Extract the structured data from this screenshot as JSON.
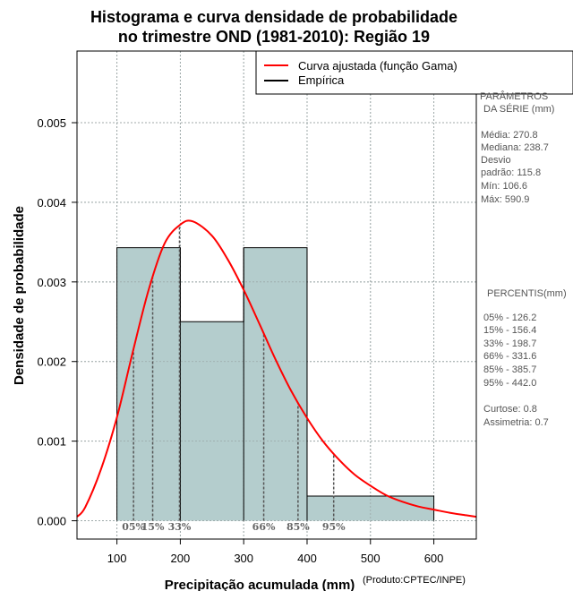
{
  "chart_data": {
    "type": "histogram",
    "title": [
      "Histograma e curva densidade de probabilidade",
      "no trimestre OND (1981-2010): Região 19"
    ],
    "xlabel": "Precipitação acumulada (mm)",
    "ylabel": "Densidade de probabilidade",
    "credit": "(Produto:CPTEC/INPE)",
    "xlim": [
      37,
      667
    ],
    "ylim": [
      -0.00023,
      0.0059
    ],
    "xticks": [
      100,
      200,
      300,
      400,
      500,
      600
    ],
    "yticks": [
      0.0,
      0.001,
      0.002,
      0.003,
      0.004,
      0.005
    ],
    "ytick_labels": [
      "0.000",
      "0.001",
      "0.002",
      "0.003",
      "0.004",
      "0.005"
    ],
    "grid": true,
    "bins": [
      {
        "x0": 100,
        "x1": 200,
        "density": 0.00343
      },
      {
        "x0": 200,
        "x1": 300,
        "density": 0.0025
      },
      {
        "x0": 300,
        "x1": 400,
        "density": 0.00343
      },
      {
        "x0": 400,
        "x1": 600,
        "density": 0.00031
      }
    ],
    "bar_color": "#b4cdcd",
    "curve_color": "#ff0000",
    "curve": {
      "x": [
        37,
        50,
        75,
        100,
        125,
        150,
        175,
        200,
        220,
        250,
        275,
        300,
        325,
        350,
        375,
        400,
        425,
        450,
        475,
        500,
        525,
        550,
        575,
        600,
        625,
        650,
        667
      ],
      "y": [
        5e-05,
        0.00017,
        0.00065,
        0.0013,
        0.00212,
        0.0029,
        0.00348,
        0.00372,
        0.00376,
        0.00358,
        0.00328,
        0.0029,
        0.00247,
        0.00203,
        0.00163,
        0.00129,
        0.001,
        0.00077,
        0.00058,
        0.00044,
        0.00032,
        0.00024,
        0.00018,
        0.00014,
        0.0001,
        7e-05,
        5e-05
      ]
    },
    "percentiles": [
      {
        "label": "05%",
        "x": 126.2
      },
      {
        "label": "15%",
        "x": 156.4
      },
      {
        "label": "33%",
        "x": 198.7
      },
      {
        "label": "66%",
        "x": 331.6
      },
      {
        "label": "85%",
        "x": 385.7
      },
      {
        "label": "95%",
        "x": 442.0
      }
    ],
    "legend": {
      "position": "top-right",
      "entries": [
        {
          "label": "Curva ajustada (função Gama)",
          "color": "#ff0000"
        },
        {
          "label": "Empírica",
          "color": "#000000"
        }
      ]
    },
    "side_panel": {
      "params_heading": [
        "PARÂMETROS",
        "DA SÉRIE (mm)"
      ],
      "params": [
        "Média:  270.8",
        "Mediana:  238.7",
        "Desvio",
        "padrão:  115.8",
        "Mín:  106.6",
        "Máx:  590.9"
      ],
      "percentis_heading": "PERCENTIS(mm)",
      "percentis": [
        "05% -  126.2",
        "15% -  156.4",
        "33% -  198.7",
        "66% -  331.6",
        "85% -  385.7",
        "95% -  442.0"
      ],
      "moments": [
        "Curtose:  0.8",
        "Assimetria:  0.7"
      ]
    }
  }
}
